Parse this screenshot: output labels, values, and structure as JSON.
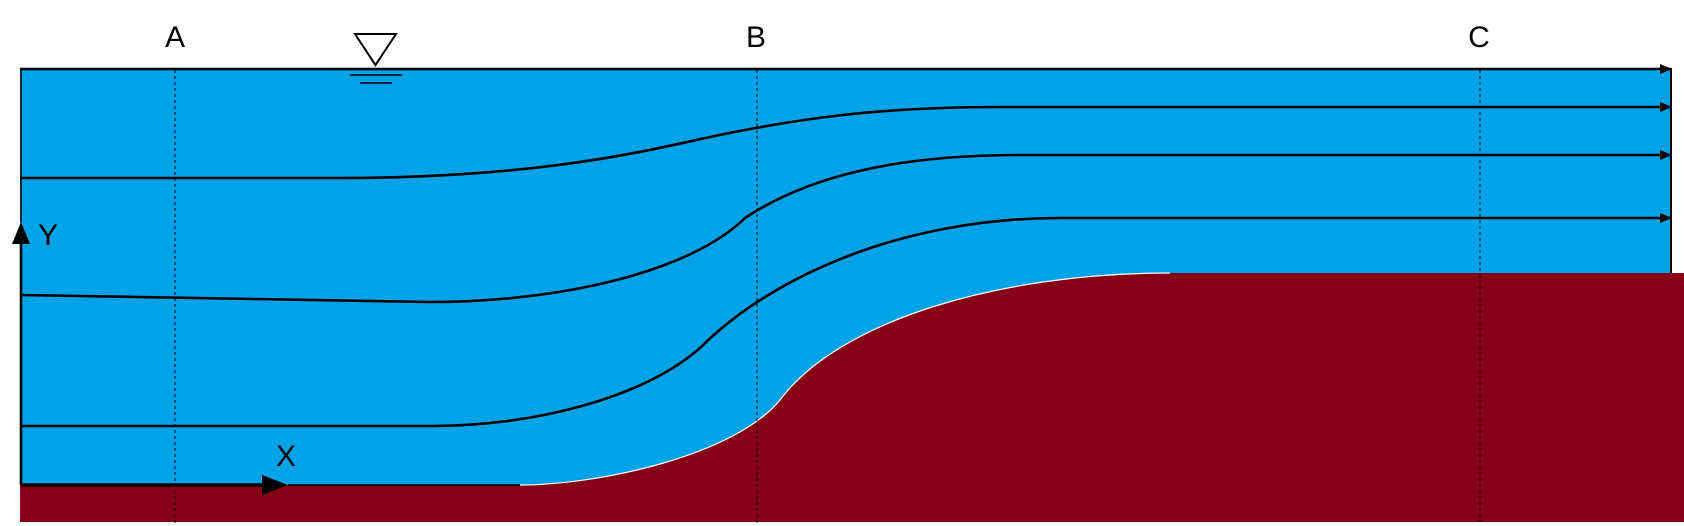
{
  "sections": [
    {
      "label": "A"
    },
    {
      "label": "B"
    },
    {
      "label": "C"
    }
  ],
  "axes": {
    "x_label": "X",
    "y_label": "Y"
  },
  "colors": {
    "water": "#00A2E8",
    "bed": "#880016",
    "lines": "#000000",
    "background": "#FFFFFF"
  },
  "icons": {
    "water_surface": "inverted-triangle-water-level-icon"
  },
  "streamline_count": 4
}
